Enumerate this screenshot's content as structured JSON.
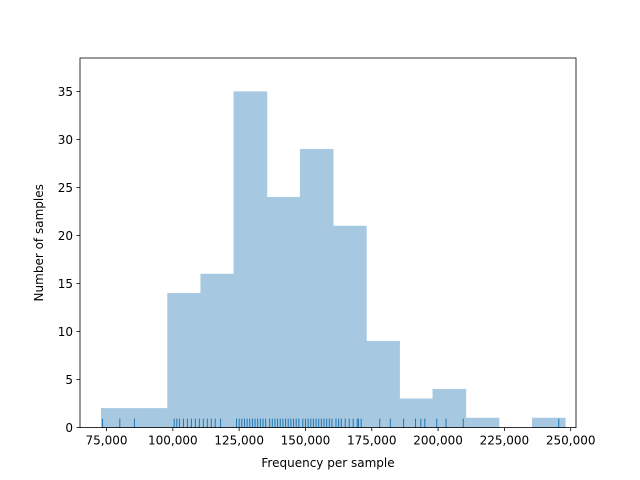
{
  "chart_data": {
    "type": "bar",
    "title": "",
    "xlabel": "Frequency per sample",
    "ylabel": "Number of samples",
    "xlim": [
      65000,
      252000
    ],
    "ylim": [
      0,
      38.5
    ],
    "xticks": [
      75000,
      100000,
      125000,
      150000,
      175000,
      200000,
      225000,
      250000
    ],
    "xtick_labels": [
      "75,000",
      "100,000",
      "125,000",
      "150,000",
      "175,000",
      "200,000",
      "225,000",
      "250,000"
    ],
    "yticks": [
      0,
      5,
      10,
      15,
      20,
      25,
      30,
      35
    ],
    "ytick_labels": [
      "0",
      "5",
      "10",
      "15",
      "20",
      "25",
      "30",
      "35"
    ],
    "grid": false,
    "bar_color": "#a6c8e0",
    "rug_color": "#1f77b4",
    "bins": [
      {
        "x0": 73000,
        "x1": 83000,
        "count": 2
      },
      {
        "x0": 83000,
        "x1": 93000,
        "count": 2
      },
      {
        "x0": 93000,
        "x1": 98000,
        "count": 2
      },
      {
        "x0": 98000,
        "x1": 110500,
        "count": 14
      },
      {
        "x0": 110500,
        "x1": 123000,
        "count": 16
      },
      {
        "x0": 123000,
        "x1": 135500,
        "count": 35
      },
      {
        "x0": 135500,
        "x1": 148000,
        "count": 24
      },
      {
        "x0": 148000,
        "x1": 160500,
        "count": 29
      },
      {
        "x0": 160500,
        "x1": 173000,
        "count": 21
      },
      {
        "x0": 173000,
        "x1": 185500,
        "count": 9
      },
      {
        "x0": 185500,
        "x1": 198000,
        "count": 3
      },
      {
        "x0": 198000,
        "x1": 210500,
        "count": 4
      },
      {
        "x0": 210500,
        "x1": 223000,
        "count": 1
      },
      {
        "x0": 223000,
        "x1": 235500,
        "count": 0
      },
      {
        "x0": 235500,
        "x1": 248000,
        "count": 1
      }
    ],
    "rug": [
      73500,
      80000,
      85500,
      100500,
      101500,
      102500,
      104000,
      105500,
      107000,
      108500,
      110000,
      111500,
      113000,
      114500,
      116000,
      118000,
      124000,
      125000,
      126000,
      127000,
      128000,
      129000,
      130000,
      131000,
      132000,
      133000,
      134000,
      135000,
      136500,
      137500,
      138500,
      139500,
      140500,
      141500,
      142500,
      143500,
      144500,
      145500,
      146500,
      147500,
      149000,
      150000,
      151000,
      152000,
      153000,
      154000,
      155000,
      156000,
      157000,
      158000,
      159000,
      160000,
      161500,
      162500,
      163500,
      165000,
      166500,
      168000,
      169500,
      170000,
      171000,
      178000,
      182000,
      187000,
      191500,
      193500,
      195000,
      199500,
      203000,
      209500,
      245500
    ]
  }
}
